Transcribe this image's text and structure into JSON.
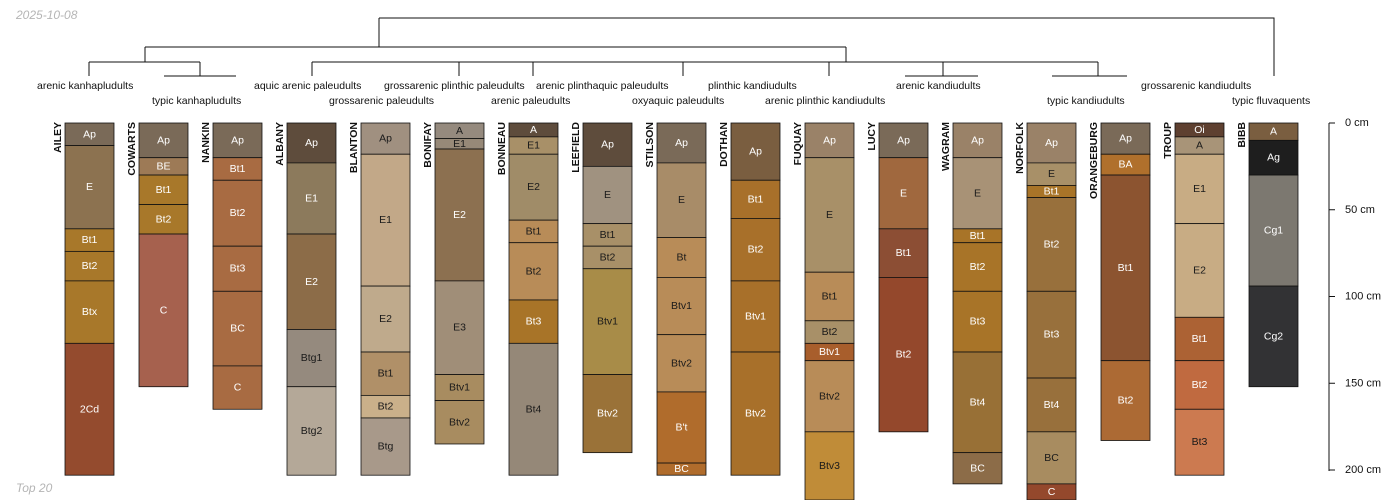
{
  "header": {
    "date": "2025-10-08"
  },
  "footer": {
    "label": "Top 20"
  },
  "depth_axis": {
    "unit": "cm",
    "ticks": [
      0,
      50,
      100,
      150,
      200
    ],
    "tick_labels": [
      "0 cm",
      "50 cm",
      "100 cm",
      "150 cm",
      "200 cm"
    ]
  },
  "taxa": [
    "arenic kanhapludults",
    "typic kanhapludults",
    "aquic arenic paleudults",
    "grossarenic paleudults",
    "grossarenic plinthic paleudults",
    "arenic paleudults",
    "arenic plinthaquic paleudults",
    "oxyaquic paleudults",
    "plinthic kandiudults",
    "arenic plinthic kandiudults",
    "arenic kandiudults",
    "typic kandiudults",
    "grossarenic kandiudults",
    "typic fluvaquents"
  ],
  "profiles": [
    {
      "name": "AILEY",
      "horizons": [
        {
          "name": "Ap",
          "top": 0,
          "bottom": 13,
          "color": "#7a6a58"
        },
        {
          "name": "E",
          "top": 13,
          "bottom": 61,
          "color": "#8c7250"
        },
        {
          "name": "Bt1",
          "top": 61,
          "bottom": 74,
          "color": "#a8782a"
        },
        {
          "name": "Bt2",
          "top": 74,
          "bottom": 91,
          "color": "#a8782a"
        },
        {
          "name": "Btx",
          "top": 91,
          "bottom": 127,
          "color": "#a8782a"
        },
        {
          "name": "2Cd",
          "top": 127,
          "bottom": 203,
          "color": "#944b2e"
        }
      ]
    },
    {
      "name": "COWARTS",
      "horizons": [
        {
          "name": "Ap",
          "top": 0,
          "bottom": 20,
          "color": "#7a6a58"
        },
        {
          "name": "BE",
          "top": 20,
          "bottom": 30,
          "color": "#9d7a56"
        },
        {
          "name": "Bt1",
          "top": 30,
          "bottom": 47,
          "color": "#a8782a"
        },
        {
          "name": "Bt2",
          "top": 47,
          "bottom": 64,
          "color": "#a8782a"
        },
        {
          "name": "C",
          "top": 64,
          "bottom": 152,
          "color": "#a6614e"
        }
      ]
    },
    {
      "name": "NANKIN",
      "horizons": [
        {
          "name": "Ap",
          "top": 0,
          "bottom": 20,
          "color": "#7a6a58"
        },
        {
          "name": "Bt1",
          "top": 20,
          "bottom": 33,
          "color": "#a86b42"
        },
        {
          "name": "Bt2",
          "top": 33,
          "bottom": 71,
          "color": "#a86b42"
        },
        {
          "name": "Bt3",
          "top": 71,
          "bottom": 97,
          "color": "#a86b42"
        },
        {
          "name": "BC",
          "top": 97,
          "bottom": 140,
          "color": "#a86b42"
        },
        {
          "name": "C",
          "top": 140,
          "bottom": 165,
          "color": "#a86b42"
        }
      ]
    },
    {
      "name": "ALBANY",
      "horizons": [
        {
          "name": "Ap",
          "top": 0,
          "bottom": 23,
          "color": "#5e4c3c"
        },
        {
          "name": "E1",
          "top": 23,
          "bottom": 64,
          "color": "#8c7a5c"
        },
        {
          "name": "E2",
          "top": 64,
          "bottom": 119,
          "color": "#8c6c48"
        },
        {
          "name": "Btg1",
          "top": 119,
          "bottom": 152,
          "color": "#958a7e"
        },
        {
          "name": "Btg2",
          "top": 152,
          "bottom": 203,
          "color": "#b4a898"
        }
      ]
    },
    {
      "name": "BLANTON",
      "horizons": [
        {
          "name": "Ap",
          "top": 0,
          "bottom": 18,
          "color": "#a09080"
        },
        {
          "name": "E1",
          "top": 18,
          "bottom": 94,
          "color": "#c2a888"
        },
        {
          "name": "E2",
          "top": 94,
          "bottom": 132,
          "color": "#bfaa8c"
        },
        {
          "name": "Bt1",
          "top": 132,
          "bottom": 157,
          "color": "#b09068"
        },
        {
          "name": "Bt2",
          "top": 157,
          "bottom": 170,
          "color": "#cab08a"
        },
        {
          "name": "Btg",
          "top": 170,
          "bottom": 203,
          "color": "#a8998a"
        }
      ]
    },
    {
      "name": "BONIFAY",
      "horizons": [
        {
          "name": "A",
          "top": 0,
          "bottom": 9,
          "color": "#958a7e"
        },
        {
          "name": "E1",
          "top": 9,
          "bottom": 15,
          "color": "#978978"
        },
        {
          "name": "E2",
          "top": 15,
          "bottom": 91,
          "color": "#8c7050"
        },
        {
          "name": "E3",
          "top": 91,
          "bottom": 145,
          "color": "#a08e78"
        },
        {
          "name": "Btv1",
          "top": 145,
          "bottom": 160,
          "color": "#a88c60"
        },
        {
          "name": "Btv2",
          "top": 160,
          "bottom": 185,
          "color": "#a88c60"
        }
      ]
    },
    {
      "name": "BONNEAU",
      "horizons": [
        {
          "name": "A",
          "top": 0,
          "bottom": 8,
          "color": "#5e4c3c"
        },
        {
          "name": "E1",
          "top": 8,
          "bottom": 18,
          "color": "#a89068"
        },
        {
          "name": "E2",
          "top": 18,
          "bottom": 56,
          "color": "#a08c68"
        },
        {
          "name": "Bt1",
          "top": 56,
          "bottom": 69,
          "color": "#b88c58"
        },
        {
          "name": "Bt2",
          "top": 69,
          "bottom": 102,
          "color": "#b88c58"
        },
        {
          "name": "Bt3",
          "top": 102,
          "bottom": 127,
          "color": "#a87428"
        },
        {
          "name": "Bt4",
          "top": 127,
          "bottom": 203,
          "color": "#958878"
        }
      ]
    },
    {
      "name": "LEEFIELD",
      "horizons": [
        {
          "name": "Ap",
          "top": 0,
          "bottom": 25,
          "color": "#5e4c3c"
        },
        {
          "name": "E",
          "top": 25,
          "bottom": 58,
          "color": "#a09280"
        },
        {
          "name": "Bt1",
          "top": 58,
          "bottom": 71,
          "color": "#a89068"
        },
        {
          "name": "Bt2",
          "top": 71,
          "bottom": 84,
          "color": "#a89068"
        },
        {
          "name": "Btv1",
          "top": 84,
          "bottom": 145,
          "color": "#a88c48"
        },
        {
          "name": "Btv2",
          "top": 145,
          "bottom": 190,
          "color": "#9a7238"
        }
      ]
    },
    {
      "name": "STILSON",
      "horizons": [
        {
          "name": "Ap",
          "top": 0,
          "bottom": 23,
          "color": "#7a6a58"
        },
        {
          "name": "E",
          "top": 23,
          "bottom": 66,
          "color": "#a88c68"
        },
        {
          "name": "Bt",
          "top": 66,
          "bottom": 89,
          "color": "#b88c58"
        },
        {
          "name": "Btv1",
          "top": 89,
          "bottom": 122,
          "color": "#b88c58"
        },
        {
          "name": "Btv2",
          "top": 122,
          "bottom": 155,
          "color": "#b88c58"
        },
        {
          "name": "B't",
          "top": 155,
          "bottom": 196,
          "color": "#b06c2c"
        },
        {
          "name": "BC",
          "top": 196,
          "bottom": 203,
          "color": "#b06c2c"
        }
      ]
    },
    {
      "name": "DOTHAN",
      "horizons": [
        {
          "name": "Ap",
          "top": 0,
          "bottom": 33,
          "color": "#7a5e40"
        },
        {
          "name": "Bt1",
          "top": 33,
          "bottom": 55,
          "color": "#a8702a"
        },
        {
          "name": "Bt2",
          "top": 55,
          "bottom": 91,
          "color": "#a8702a"
        },
        {
          "name": "Btv1",
          "top": 91,
          "bottom": 132,
          "color": "#a8702a"
        },
        {
          "name": "Btv2",
          "top": 132,
          "bottom": 203,
          "color": "#a8702a"
        }
      ]
    },
    {
      "name": "FUQUAY",
      "horizons": [
        {
          "name": "Ap",
          "top": 0,
          "bottom": 20,
          "color": "#9a8268"
        },
        {
          "name": "E",
          "top": 20,
          "bottom": 86,
          "color": "#a89068"
        },
        {
          "name": "Bt1",
          "top": 86,
          "bottom": 114,
          "color": "#b88c58"
        },
        {
          "name": "Bt2",
          "top": 114,
          "bottom": 127,
          "color": "#a89068"
        },
        {
          "name": "Btv1",
          "top": 127,
          "bottom": 137,
          "color": "#a85e2c"
        },
        {
          "name": "Btv2",
          "top": 137,
          "bottom": 178,
          "color": "#b88c58"
        },
        {
          "name": "Btv3",
          "top": 178,
          "bottom": 220,
          "color": "#c08c38"
        }
      ]
    },
    {
      "name": "LUCY",
      "horizons": [
        {
          "name": "Ap",
          "top": 0,
          "bottom": 20,
          "color": "#7a6a58"
        },
        {
          "name": "E",
          "top": 20,
          "bottom": 61,
          "color": "#a0683e"
        },
        {
          "name": "Bt1",
          "top": 61,
          "bottom": 89,
          "color": "#8c4e34"
        },
        {
          "name": "Bt2",
          "top": 89,
          "bottom": 178,
          "color": "#94482c"
        }
      ]
    },
    {
      "name": "WAGRAM",
      "horizons": [
        {
          "name": "Ap",
          "top": 0,
          "bottom": 20,
          "color": "#9a8268"
        },
        {
          "name": "E",
          "top": 20,
          "bottom": 61,
          "color": "#a89276"
        },
        {
          "name": "Bt1",
          "top": 61,
          "bottom": 69,
          "color": "#a87428"
        },
        {
          "name": "Bt2",
          "top": 69,
          "bottom": 97,
          "color": "#a87428"
        },
        {
          "name": "Bt3",
          "top": 97,
          "bottom": 132,
          "color": "#a87428"
        },
        {
          "name": "Bt4",
          "top": 132,
          "bottom": 190,
          "color": "#987036"
        },
        {
          "name": "BC",
          "top": 190,
          "bottom": 208,
          "color": "#8c6c48"
        }
      ]
    },
    {
      "name": "NORFOLK",
      "horizons": [
        {
          "name": "Ap",
          "top": 0,
          "bottom": 23,
          "color": "#9a8268"
        },
        {
          "name": "E",
          "top": 23,
          "bottom": 36,
          "color": "#a89068"
        },
        {
          "name": "Bt1",
          "top": 36,
          "bottom": 43,
          "color": "#a87428"
        },
        {
          "name": "Bt2",
          "top": 43,
          "bottom": 97,
          "color": "#98703c"
        },
        {
          "name": "Bt3",
          "top": 97,
          "bottom": 147,
          "color": "#98703c"
        },
        {
          "name": "Bt4",
          "top": 147,
          "bottom": 178,
          "color": "#98703c"
        },
        {
          "name": "BC",
          "top": 178,
          "bottom": 208,
          "color": "#a88c60"
        },
        {
          "name": "C",
          "top": 208,
          "bottom": 220,
          "color": "#94482c"
        }
      ]
    },
    {
      "name": "ORANGEBURG",
      "horizons": [
        {
          "name": "Ap",
          "top": 0,
          "bottom": 18,
          "color": "#7a6a58"
        },
        {
          "name": "BA",
          "top": 18,
          "bottom": 30,
          "color": "#b0702c"
        },
        {
          "name": "Bt1",
          "top": 30,
          "bottom": 137,
          "color": "#8c5430"
        },
        {
          "name": "Bt2",
          "top": 137,
          "bottom": 183,
          "color": "#ac6a34"
        }
      ]
    },
    {
      "name": "TROUP",
      "horizons": [
        {
          "name": "Oi",
          "top": 0,
          "bottom": 8,
          "color": "#5e4030"
        },
        {
          "name": "A",
          "top": 8,
          "bottom": 18,
          "color": "#a89478"
        },
        {
          "name": "E1",
          "top": 18,
          "bottom": 58,
          "color": "#c8ac84"
        },
        {
          "name": "E2",
          "top": 58,
          "bottom": 112,
          "color": "#c8ac84"
        },
        {
          "name": "Bt1",
          "top": 112,
          "bottom": 137,
          "color": "#ac6234"
        },
        {
          "name": "Bt2",
          "top": 137,
          "bottom": 165,
          "color": "#c06a40"
        },
        {
          "name": "Bt3",
          "top": 165,
          "bottom": 203,
          "color": "#cc7a50"
        }
      ]
    },
    {
      "name": "BIBB",
      "horizons": [
        {
          "name": "A",
          "top": 0,
          "bottom": 10,
          "color": "#7a5e40"
        },
        {
          "name": "Ag",
          "top": 10,
          "bottom": 30,
          "color": "#1e1e1e"
        },
        {
          "name": "Cg1",
          "top": 30,
          "bottom": 94,
          "color": "#7c7870"
        },
        {
          "name": "Cg2",
          "top": 94,
          "bottom": 152,
          "color": "#323234"
        }
      ]
    }
  ]
}
